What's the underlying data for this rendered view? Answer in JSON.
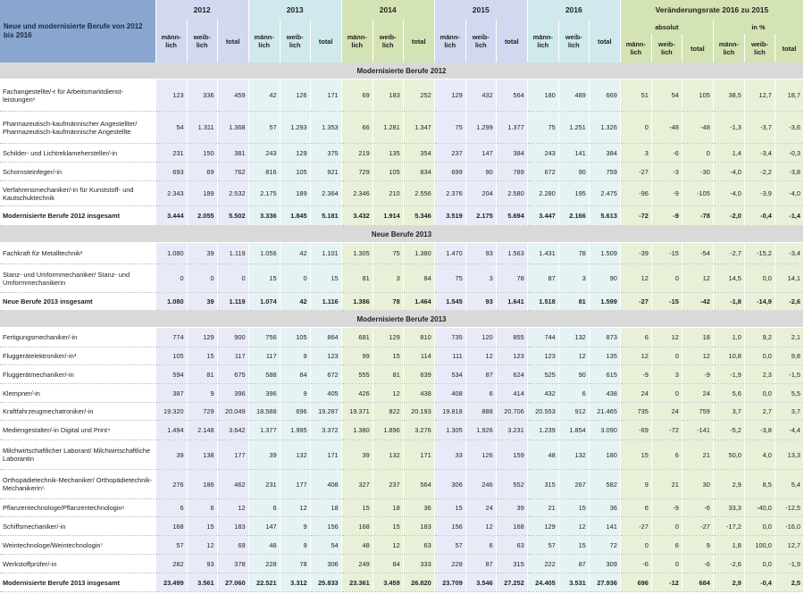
{
  "header": {
    "title": "Neue und modernisierte Berufe von 2012 bis 2016",
    "years": [
      "2012",
      "2013",
      "2014",
      "2015",
      "2016"
    ],
    "change_title": "Veränderungsrate 2016 zu 2015",
    "absolut": "absolut",
    "in_pct": "in %",
    "m": "männ-lich",
    "w": "weib-lich",
    "t": "total"
  },
  "sections": [
    {
      "title": "Modernisierte Berufe 2012",
      "rows": [
        {
          "label": "Fachangestellte/-r für Arbeitsmarktdienst-leistungen¹",
          "values": [
            "123",
            "336",
            "459",
            "42",
            "126",
            "171",
            "69",
            "183",
            "252",
            "129",
            "432",
            "564",
            "180",
            "489",
            "669",
            "51",
            "54",
            "105",
            "38,5",
            "12,7",
            "18,7"
          ],
          "h": 36
        },
        {
          "label": "Pharmazeutisch-kaufmännischer Angestellter/ Pharmazeutisch-kaufmännische Angestellte",
          "values": [
            "54",
            "1.311",
            "1.368",
            "57",
            "1.293",
            "1.353",
            "66",
            "1.281",
            "1.347",
            "75",
            "1.299",
            "1.377",
            "75",
            "1.251",
            "1.326",
            "0",
            "-48",
            "-48",
            "-1,3",
            "-3,7",
            "-3,6"
          ],
          "h": 36
        },
        {
          "label": "Schilder- und Lichtreklamehersteller/-in",
          "values": [
            "231",
            "150",
            "381",
            "243",
            "129",
            "375",
            "219",
            "135",
            "354",
            "237",
            "147",
            "384",
            "243",
            "141",
            "384",
            "3",
            "-6",
            "0",
            "1,4",
            "-3,4",
            "-0,3"
          ],
          "h": 21
        },
        {
          "label": "Schornsteinfeger/-in",
          "values": [
            "693",
            "69",
            "762",
            "816",
            "105",
            "921",
            "729",
            "105",
            "834",
            "699",
            "90",
            "789",
            "672",
            "90",
            "759",
            "-27",
            "-3",
            "-30",
            "-4,0",
            "-2,2",
            "-3,8"
          ],
          "h": 21
        },
        {
          "label": "Verfahrensmechaniker/-in für Kunststoff- und Kautschuktechnik",
          "values": [
            "2.343",
            "189",
            "2.532",
            "2.175",
            "189",
            "2.364",
            "2.346",
            "210",
            "2.556",
            "2.376",
            "204",
            "2.580",
            "2.280",
            "195",
            "2.475",
            "-96",
            "-9",
            "-105",
            "-4,0",
            "-3,9",
            "-4,0"
          ],
          "h": 28
        },
        {
          "label": "Modernisierte Berufe 2012 insgesamt",
          "values": [
            "3.444",
            "2.055",
            "5.502",
            "3.336",
            "1.845",
            "5.181",
            "3.432",
            "1.914",
            "5.346",
            "3.519",
            "2.175",
            "5.694",
            "3.447",
            "2.166",
            "5.613",
            "-72",
            "-9",
            "-78",
            "-2,0",
            "-0,4",
            "-1,4"
          ],
          "h": 22,
          "total": true
        }
      ]
    },
    {
      "title": "Neue Berufe 2013",
      "rows": [
        {
          "label": "Fachkraft für Metalltechnik²",
          "values": [
            "1.080",
            "39",
            "1.119",
            "1.056",
            "42",
            "1.101",
            "1.305",
            "75",
            "1.380",
            "1.470",
            "93",
            "1.563",
            "1.431",
            "78",
            "1.509",
            "-39",
            "-15",
            "-54",
            "-2,7",
            "-15,2",
            "-3,4"
          ],
          "h": 24
        },
        {
          "label": "Stanz- und Umformmechaniker/ Stanz- und Umformmechanikerin",
          "values": [
            "0",
            "0",
            "0",
            "15",
            "0",
            "15",
            "81",
            "3",
            "84",
            "75",
            "3",
            "78",
            "87",
            "3",
            "90",
            "12",
            "0",
            "12",
            "14,5",
            "0,0",
            "14,1"
          ],
          "h": 32
        },
        {
          "label": "Neue Berufe 2013 insgesamt",
          "values": [
            "1.080",
            "39",
            "1.119",
            "1.074",
            "42",
            "1.116",
            "1.386",
            "78",
            "1.464",
            "1.545",
            "93",
            "1.641",
            "1.518",
            "81",
            "1.599",
            "-27",
            "-15",
            "-42",
            "-1,8",
            "-14,9",
            "-2,6"
          ],
          "h": 20,
          "total": true
        }
      ]
    },
    {
      "title": "Modernisierte Berufe 2013",
      "rows": [
        {
          "label": "Fertigungsmechaniker/-in",
          "values": [
            "774",
            "129",
            "900",
            "756",
            "105",
            "864",
            "681",
            "129",
            "810",
            "735",
            "120",
            "855",
            "744",
            "132",
            "873",
            "6",
            "12",
            "18",
            "1,0",
            "9,2",
            "2,1"
          ],
          "h": 22
        },
        {
          "label": "Fluggerätelektroniker/-in³",
          "values": [
            "105",
            "15",
            "117",
            "117",
            "9",
            "123",
            "99",
            "15",
            "114",
            "111",
            "12",
            "123",
            "123",
            "12",
            "135",
            "12",
            "0",
            "12",
            "10,8",
            "0,0",
            "9,8"
          ],
          "h": 20
        },
        {
          "label": "Fluggerätmechaniker/-in",
          "values": [
            "594",
            "81",
            "675",
            "588",
            "84",
            "672",
            "555",
            "81",
            "639",
            "534",
            "87",
            "624",
            "525",
            "90",
            "615",
            "-9",
            "3",
            "-9",
            "-1,9",
            "2,3",
            "-1,5"
          ],
          "h": 21
        },
        {
          "label": "Klempner/-in",
          "values": [
            "387",
            "9",
            "396",
            "396",
            "9",
            "405",
            "426",
            "12",
            "438",
            "408",
            "6",
            "414",
            "432",
            "6",
            "438",
            "24",
            "0",
            "24",
            "5,6",
            "0,0",
            "5,5"
          ],
          "h": 21
        },
        {
          "label": "Kraftfahrzeugmechatroniker/-in",
          "values": [
            "19.320",
            "729",
            "20.049",
            "18.588",
            "696",
            "19.287",
            "19.371",
            "822",
            "20.193",
            "19.818",
            "888",
            "20.706",
            "20.553",
            "912",
            "21.465",
            "735",
            "24",
            "759",
            "3,7",
            "2,7",
            "3,7"
          ],
          "h": 20
        },
        {
          "label": "Mediengestalter/-in Digital und Print⁴",
          "values": [
            "1.494",
            "2.148",
            "3.642",
            "1.377",
            "1.995",
            "3.372",
            "1.380",
            "1.896",
            "3.276",
            "1.305",
            "1.926",
            "3.231",
            "1.239",
            "1.854",
            "3.090",
            "-69",
            "-72",
            "-141",
            "-5,2",
            "-3,8",
            "-4,4"
          ],
          "h": 22
        },
        {
          "label": "Milchwirtschaftlicher Laborant/ Milchwirtschaftliche Laborantin",
          "values": [
            "39",
            "138",
            "177",
            "39",
            "132",
            "171",
            "39",
            "132",
            "171",
            "33",
            "126",
            "159",
            "48",
            "132",
            "180",
            "15",
            "6",
            "21",
            "50,0",
            "4,0",
            "13,3"
          ],
          "h": 33
        },
        {
          "label": "Orthopädietechnik-Mechaniker/ Orthopädietechnik-Mechanikerin⁵",
          "values": [
            "276",
            "186",
            "462",
            "231",
            "177",
            "408",
            "327",
            "237",
            "564",
            "306",
            "246",
            "552",
            "315",
            "267",
            "582",
            "9",
            "21",
            "30",
            "2,9",
            "8,5",
            "5,4"
          ],
          "h": 33
        },
        {
          "label": "Pflanzentechnologe/Pflanzentechnologin⁶",
          "values": [
            "6",
            "6",
            "12",
            "6",
            "12",
            "18",
            "15",
            "18",
            "36",
            "15",
            "24",
            "39",
            "21",
            "15",
            "36",
            "6",
            "-9",
            "-6",
            "33,3",
            "-40,0",
            "-12,5"
          ],
          "h": 20
        },
        {
          "label": "Schiffsmechaniker/-in",
          "values": [
            "168",
            "15",
            "183",
            "147",
            "9",
            "156",
            "168",
            "15",
            "183",
            "156",
            "12",
            "168",
            "129",
            "12",
            "141",
            "-27",
            "0",
            "-27",
            "-17,2",
            "0,0",
            "-16,0"
          ],
          "h": 21
        },
        {
          "label": "Weintechnologe/Weintechnologin⁷",
          "values": [
            "57",
            "12",
            "69",
            "48",
            "9",
            "54",
            "48",
            "12",
            "63",
            "57",
            "6",
            "63",
            "57",
            "15",
            "72",
            "0",
            "6",
            "9",
            "1,8",
            "100,0",
            "12,7"
          ],
          "h": 21
        },
        {
          "label": "Werkstoffprüfer/-in",
          "values": [
            "282",
            "93",
            "378",
            "228",
            "78",
            "306",
            "249",
            "84",
            "333",
            "228",
            "87",
            "315",
            "222",
            "87",
            "309",
            "-6",
            "0",
            "-6",
            "-2,6",
            "0,0",
            "-1,9"
          ],
          "h": 21
        },
        {
          "label": "Modernisierte Berufe 2013 insgesamt",
          "values": [
            "23.499",
            "3.561",
            "27.060",
            "22.521",
            "3.312",
            "25.833",
            "23.361",
            "3.459",
            "26.820",
            "23.709",
            "3.546",
            "27.252",
            "24.405",
            "3.531",
            "27.936",
            "696",
            "-12",
            "684",
            "2,9",
            "-0,4",
            "2,5"
          ],
          "h": 21,
          "total": true
        }
      ]
    }
  ]
}
